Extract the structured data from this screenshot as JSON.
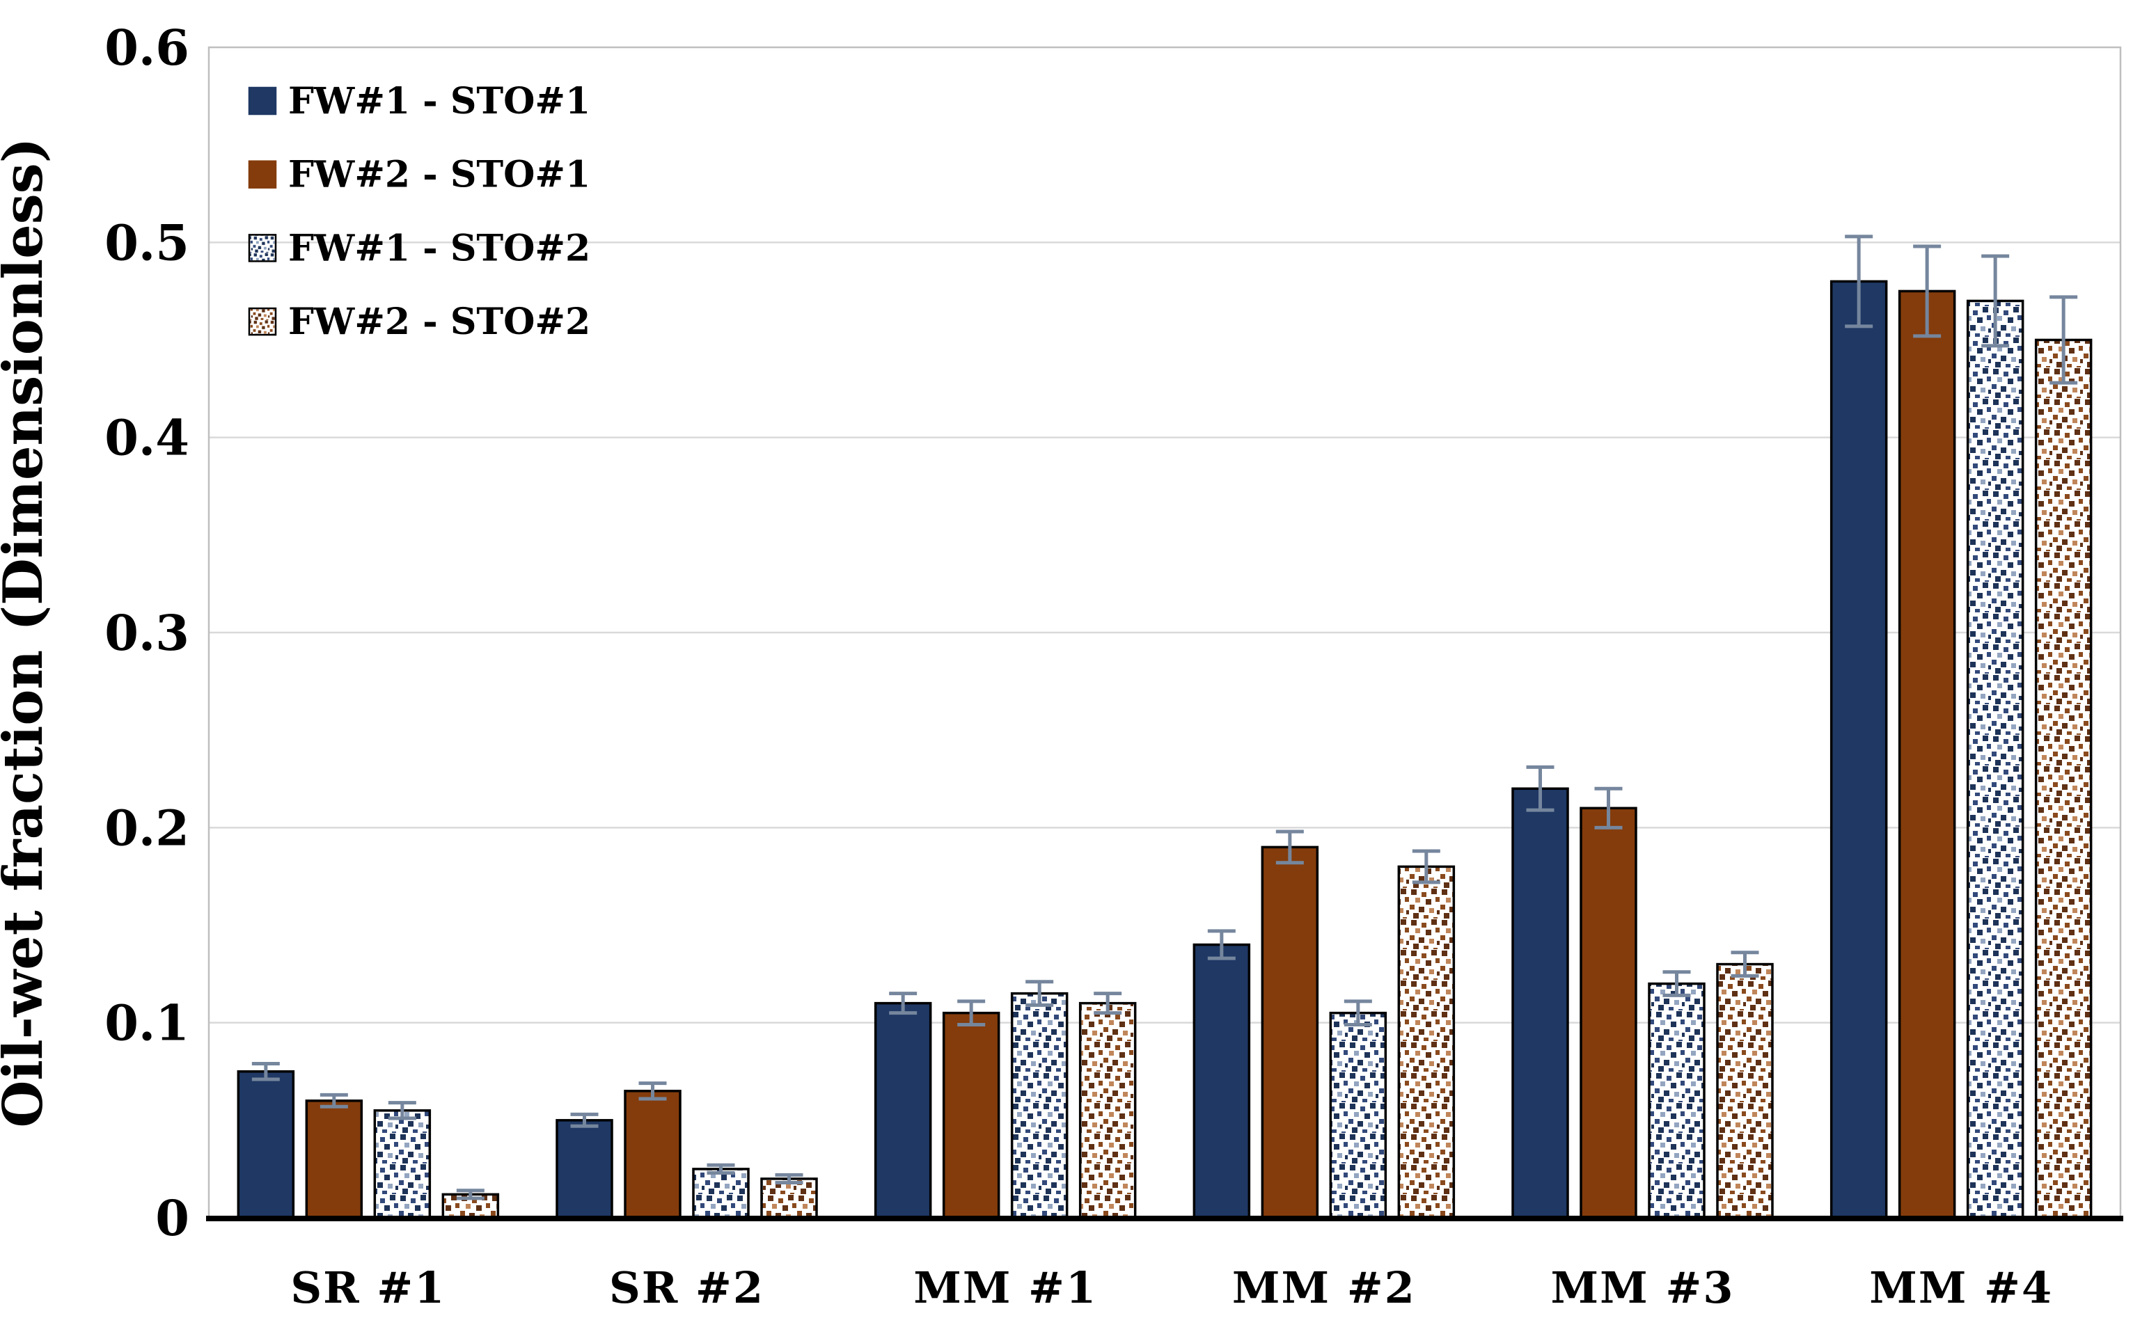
{
  "figure": {
    "ylabel": "Oil-wet fraction (Dimensionless)"
  },
  "chart_data": {
    "type": "bar",
    "title": "",
    "xlabel": "",
    "ylabel": "Oil-wet fraction (Dimensionless)",
    "categories": [
      "SR #1",
      "SR #2",
      "MM #1",
      "MM #2",
      "MM #3",
      "MM #4"
    ],
    "ylim": [
      0,
      0.6
    ],
    "ytick_labels": [
      "0",
      "0.1",
      "0.2",
      "0.3",
      "0.4",
      "0.5",
      "0.6"
    ],
    "yticks": [
      0,
      0.1,
      0.2,
      0.3,
      0.4,
      0.5,
      0.6
    ],
    "grid": "horizontal",
    "legend_position": "top-left-inside",
    "series": [
      {
        "name": "FW#1 - STO#1",
        "style": "solid",
        "color": "#1f3864",
        "values": [
          0.075,
          0.05,
          0.11,
          0.14,
          0.22,
          0.48
        ],
        "errors": [
          0.004,
          0.003,
          0.005,
          0.007,
          0.011,
          0.023
        ]
      },
      {
        "name": "FW#2 - STO#1",
        "style": "solid",
        "color": "#843c0c",
        "values": [
          0.06,
          0.065,
          0.105,
          0.19,
          0.21,
          0.475
        ],
        "errors": [
          0.003,
          0.004,
          0.006,
          0.008,
          0.01,
          0.023
        ]
      },
      {
        "name": "FW#1 - STO#2",
        "style": "dotted",
        "color": "#1f3864",
        "values": [
          0.055,
          0.025,
          0.115,
          0.105,
          0.12,
          0.47
        ],
        "errors": [
          0.004,
          0.002,
          0.006,
          0.006,
          0.006,
          0.023
        ]
      },
      {
        "name": "FW#2 - STO#2",
        "style": "dotted",
        "color": "#843c0c",
        "values": [
          0.012,
          0.02,
          0.11,
          0.18,
          0.13,
          0.45
        ],
        "errors": [
          0.002,
          0.002,
          0.005,
          0.008,
          0.006,
          0.022
        ]
      }
    ],
    "colors": {
      "navy_shades": [
        "#1e3358",
        "#32497a",
        "#93a5c0"
      ],
      "brown_shades": [
        "#5f3014",
        "#8a4a1d",
        "#c0865a"
      ],
      "error_bar": "#75869d",
      "gridline": "#d9d9d9",
      "plot_border": "#bfbfbf",
      "axis_line": "#000000",
      "bar_outline": "#000000"
    }
  }
}
